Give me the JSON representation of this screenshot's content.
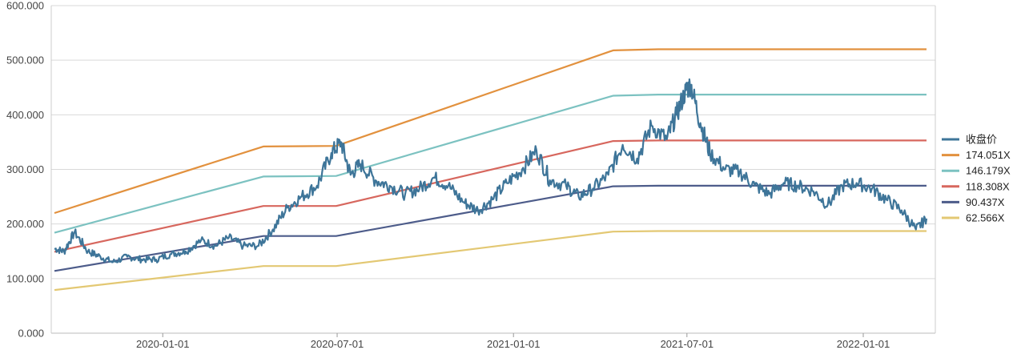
{
  "chart_data": {
    "type": "line",
    "title": "",
    "xlabel": "",
    "ylabel": "",
    "x_range": [
      "2019-09-10",
      "2022-03-08"
    ],
    "ylim": [
      0,
      600
    ],
    "y_ticks": [
      0,
      100,
      200,
      300,
      400,
      500,
      600
    ],
    "y_tick_labels": [
      "0.000",
      "100.000",
      "200.000",
      "300.000",
      "400.000",
      "500.000",
      "600.000"
    ],
    "x_ticks": [
      "2020-01-01",
      "2020-07-01",
      "2021-01-01",
      "2021-07-01",
      "2022-01-01"
    ],
    "x_tick_labels": [
      "2020-01-01",
      "2020-07-01",
      "2021-01-01",
      "2021-07-01",
      "2022-01-01"
    ],
    "grid": {
      "horizontal": true,
      "vertical": false
    },
    "legend_position": "right",
    "series": [
      {
        "name": "收盘价",
        "color": "#3e7599",
        "x": [
          "2019-09-10",
          "2019-09-20",
          "2019-10-01",
          "2019-10-15",
          "2019-10-28",
          "2019-11-10",
          "2019-11-25",
          "2019-12-10",
          "2019-12-25",
          "2020-01-10",
          "2020-01-25",
          "2020-02-10",
          "2020-02-25",
          "2020-03-10",
          "2020-03-25",
          "2020-04-10",
          "2020-04-25",
          "2020-05-10",
          "2020-05-25",
          "2020-06-10",
          "2020-06-25",
          "2020-07-05",
          "2020-07-15",
          "2020-07-25",
          "2020-08-10",
          "2020-08-25",
          "2020-09-10",
          "2020-09-25",
          "2020-10-10",
          "2020-10-25",
          "2020-11-10",
          "2020-11-25",
          "2020-12-10",
          "2020-12-25",
          "2021-01-10",
          "2021-01-25",
          "2021-02-08",
          "2021-02-25",
          "2021-03-10",
          "2021-03-25",
          "2021-04-10",
          "2021-04-25",
          "2021-05-10",
          "2021-05-25",
          "2021-06-10",
          "2021-06-20",
          "2021-06-30",
          "2021-07-05",
          "2021-07-15",
          "2021-07-25",
          "2021-08-10",
          "2021-08-25",
          "2021-09-10",
          "2021-09-25",
          "2021-10-10",
          "2021-10-25",
          "2021-11-10",
          "2021-11-25",
          "2021-12-10",
          "2021-12-25",
          "2022-01-10",
          "2022-01-25",
          "2022-02-10",
          "2022-02-25",
          "2022-03-08"
        ],
        "values": [
          155,
          150,
          185,
          150,
          140,
          130,
          140,
          135,
          135,
          145,
          150,
          170,
          160,
          175,
          160,
          160,
          190,
          230,
          250,
          270,
          330,
          350,
          290,
          310,
          280,
          270,
          255,
          265,
          285,
          270,
          240,
          225,
          245,
          275,
          300,
          335,
          280,
          270,
          250,
          265,
          290,
          345,
          320,
          380,
          355,
          400,
          445,
          455,
          385,
          330,
          300,
          295,
          270,
          255,
          275,
          270,
          260,
          235,
          270,
          275,
          265,
          245,
          225,
          190,
          210
        ]
      },
      {
        "name": "174.051X",
        "color": "#e2913e",
        "x": [
          "2019-09-10",
          "2020-04-15",
          "2020-06-30",
          "2021-04-15",
          "2021-06-01",
          "2022-03-08"
        ],
        "values": [
          220,
          342,
          343,
          518,
          520,
          520
        ]
      },
      {
        "name": "146.179X",
        "color": "#7cc2c1",
        "x": [
          "2019-09-10",
          "2020-04-15",
          "2020-06-30",
          "2021-04-15",
          "2021-06-01",
          "2022-03-08"
        ],
        "values": [
          184,
          287,
          288,
          435,
          437,
          437
        ]
      },
      {
        "name": "118.308X",
        "color": "#d7675e",
        "x": [
          "2019-09-10",
          "2020-04-15",
          "2020-06-30",
          "2021-04-15",
          "2021-06-01",
          "2022-03-08"
        ],
        "values": [
          149,
          233,
          233,
          352,
          353,
          353
        ]
      },
      {
        "name": "90.437X",
        "color": "#4d5c8a",
        "x": [
          "2019-09-10",
          "2020-04-15",
          "2020-06-30",
          "2021-04-15",
          "2021-06-01",
          "2022-03-08"
        ],
        "values": [
          114,
          178,
          178,
          269,
          270,
          270
        ]
      },
      {
        "name": "62.566X",
        "color": "#e3c873",
        "x": [
          "2019-09-10",
          "2020-04-15",
          "2020-06-30",
          "2021-04-15",
          "2021-06-01",
          "2022-03-08"
        ],
        "values": [
          79,
          123,
          123,
          186,
          187,
          187
        ]
      }
    ]
  }
}
